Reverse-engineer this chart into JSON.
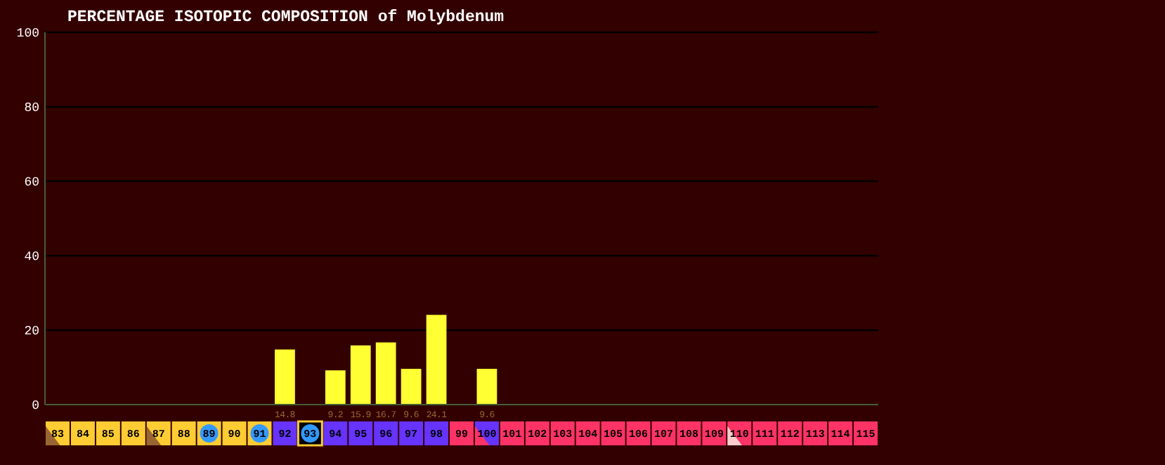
{
  "chart_data": {
    "type": "bar",
    "title": "PERCENTAGE ISOTOPIC COMPOSITION of Molybdenum",
    "categories": [
      "83",
      "84",
      "85",
      "86",
      "87",
      "88",
      "89",
      "90",
      "91",
      "92",
      "93",
      "94",
      "95",
      "96",
      "97",
      "98",
      "99",
      "100",
      "101",
      "102",
      "103",
      "104",
      "105",
      "106",
      "107",
      "108",
      "109",
      "110",
      "111",
      "112",
      "113",
      "114",
      "115"
    ],
    "values": [
      null,
      null,
      null,
      null,
      null,
      null,
      null,
      null,
      null,
      14.8,
      null,
      9.2,
      15.9,
      16.7,
      9.6,
      24.1,
      null,
      9.6,
      null,
      null,
      null,
      null,
      null,
      null,
      null,
      null,
      null,
      null,
      null,
      null,
      null,
      null,
      null
    ],
    "color": "#ffff33",
    "ylim": [
      0,
      100
    ],
    "yticks": [
      0,
      20,
      40,
      60,
      80,
      100
    ],
    "grid": "y",
    "data_labels": true
  }
}
